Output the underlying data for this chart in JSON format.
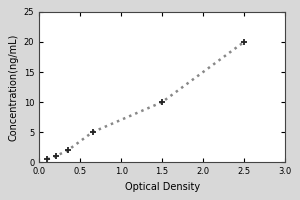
{
  "x_data": [
    0.1,
    0.2,
    0.35,
    0.65,
    1.5,
    2.5
  ],
  "y_data": [
    0.5,
    1.0,
    2.0,
    5.0,
    10.0,
    20.0
  ],
  "xlabel": "Optical Density",
  "ylabel": "Concentration(ng/mL)",
  "xlim": [
    0,
    3
  ],
  "ylim": [
    0,
    25
  ],
  "xticks": [
    0,
    0.5,
    1,
    1.5,
    2,
    2.5,
    3
  ],
  "yticks": [
    0,
    5,
    10,
    15,
    20,
    25
  ],
  "line_color": "#888888",
  "marker_color": "#222222",
  "line_style": "dotted",
  "marker_style": "+",
  "marker_size": 5,
  "line_width": 1.8,
  "tick_fontsize": 6,
  "label_fontsize": 7,
  "plot_bg": "#ffffff",
  "figure_bg": "#d8d8d8",
  "outer_border_color": "#888888"
}
